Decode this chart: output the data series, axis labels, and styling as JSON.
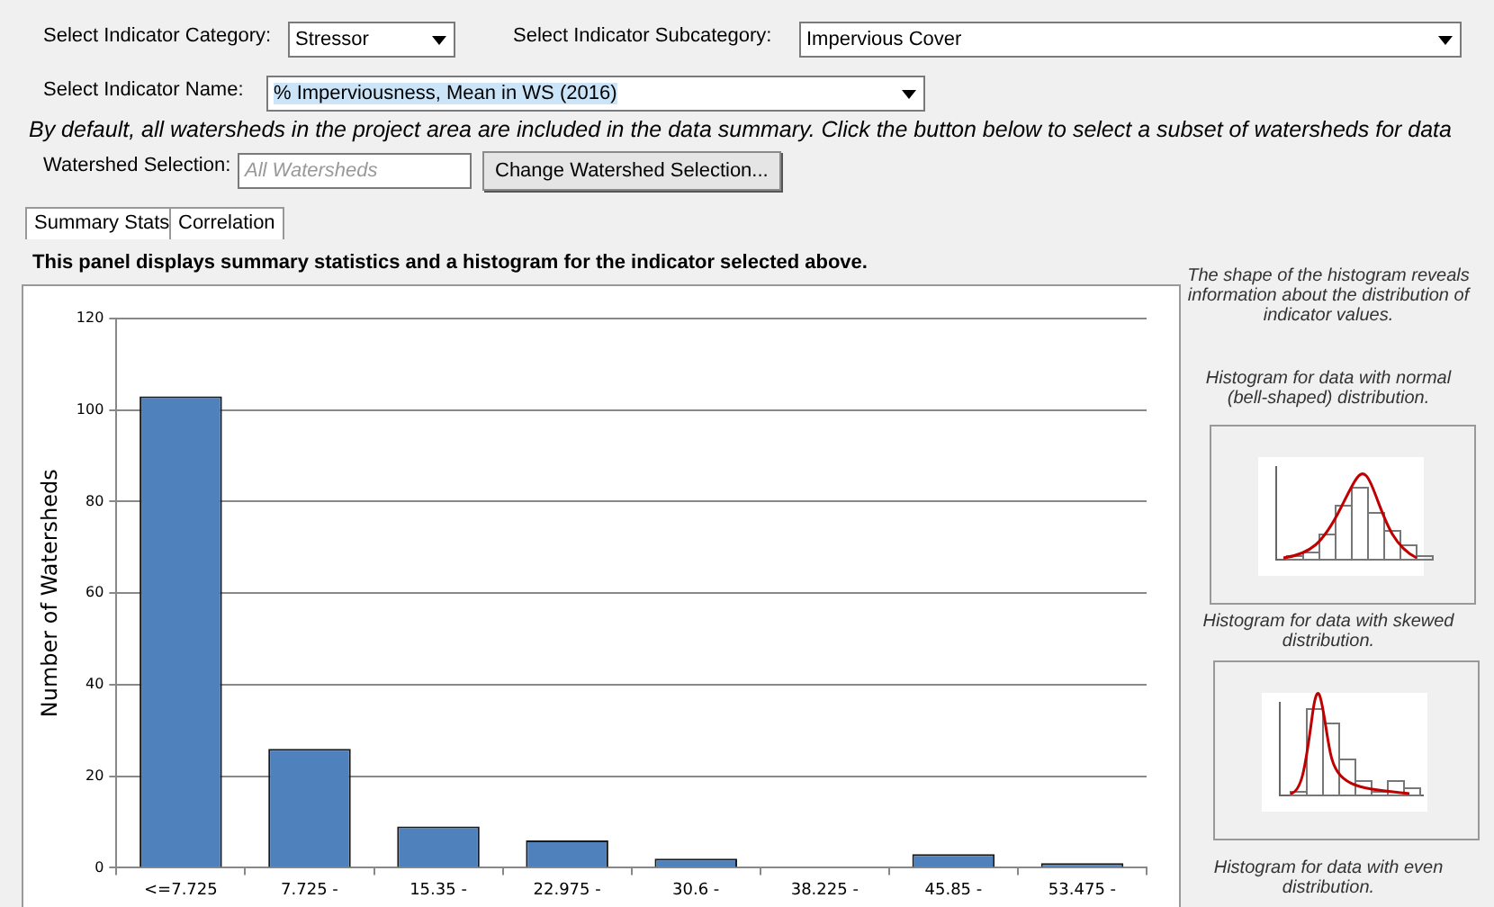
{
  "chart_data": {
    "type": "bar",
    "title": "This panel displays summary statistics and a histogram for the indicator selected above.",
    "ylabel": "Number of Watersheds",
    "categories": [
      "<=7.725",
      "7.725 -",
      "15.35 -",
      "22.975 -",
      "30.6 -",
      "38.225 -",
      "45.85 -",
      "53.475 -"
    ],
    "values": [
      103,
      26,
      9,
      6,
      2,
      0,
      3,
      1
    ],
    "color": "#4f81bd",
    "ylim": [
      0,
      120
    ],
    "yticks": [
      0,
      20,
      40,
      60,
      80,
      100,
      120
    ],
    "grid": "y",
    "legend": false,
    "annotations": [
      "Select Indicator Category:",
      "Stressor",
      "Select Indicator Subcategory:",
      "Impervious Cover",
      "Select Indicator Name:",
      "% Imperviousness, Mean in WS (2016)",
      "By default, all watersheds in the project area are included in the data summary. Click the button below to select a subset of watersheds for data",
      "Watershed Selection:",
      "All Watersheds",
      "Change Watershed Selection...",
      "Summary Stats",
      "Correlation",
      "The shape of the histogram reveals information about the distribution of indicator values.",
      "Histogram for data with normal (bell-shaped) distribution.",
      "Histogram for data with skewed distribution.",
      "Histogram for data with even distribution."
    ]
  }
}
